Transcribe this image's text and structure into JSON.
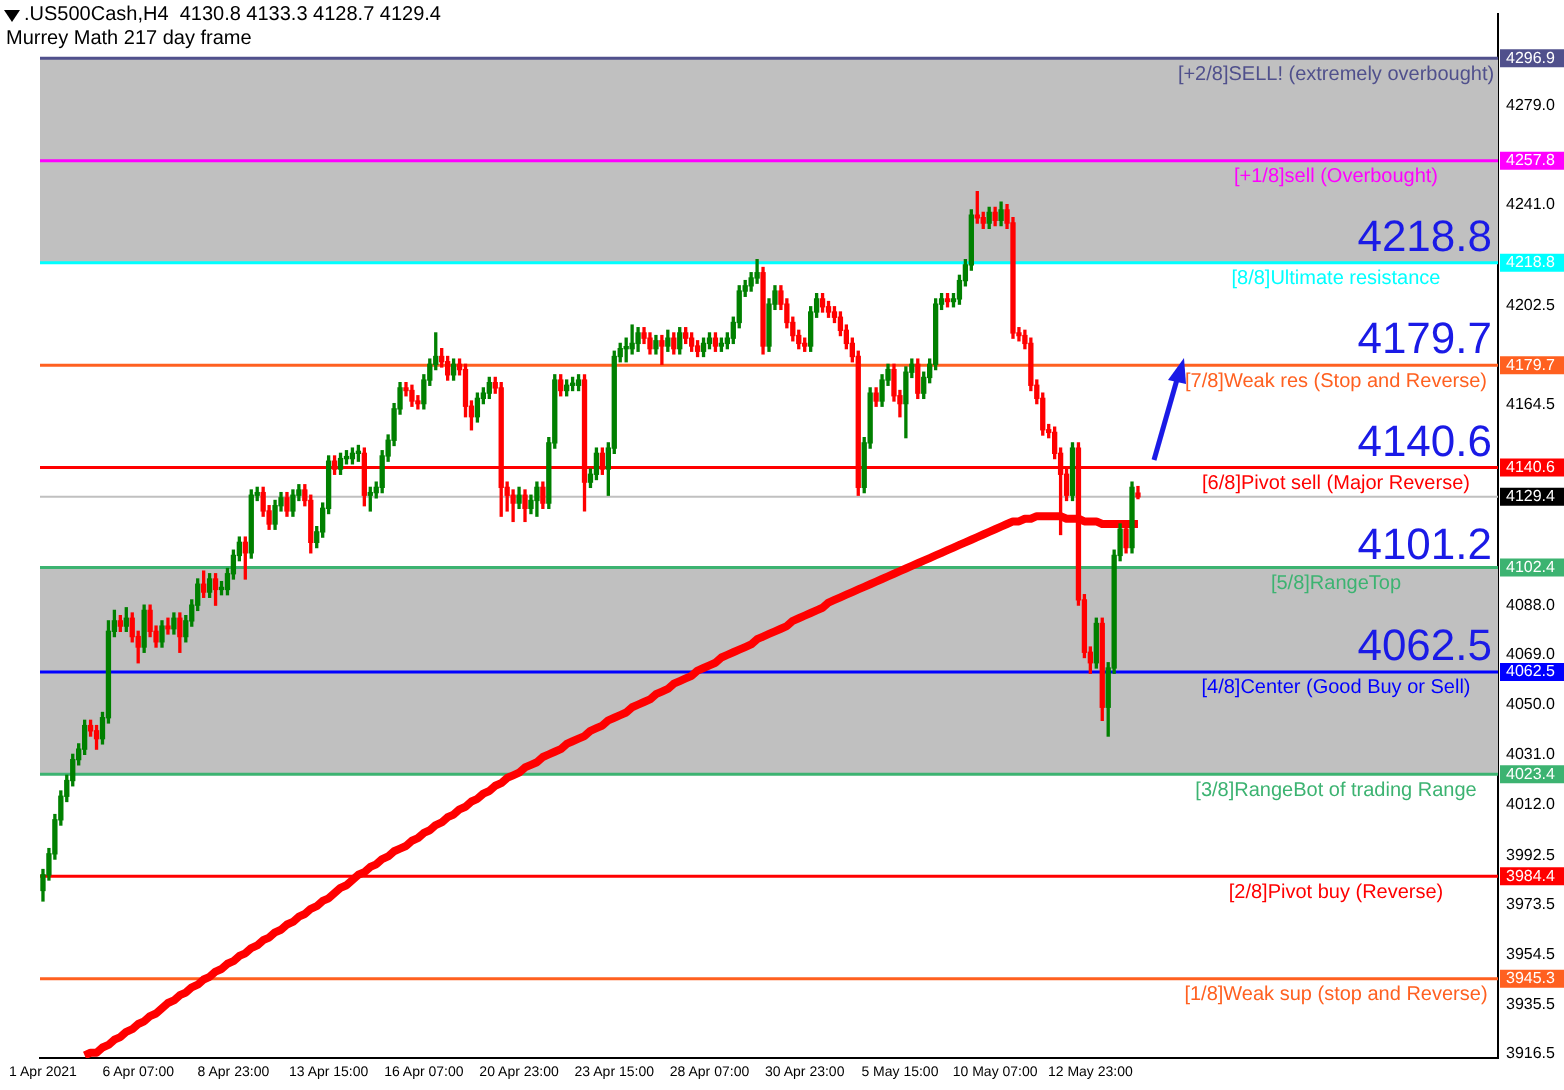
{
  "chart_data": {
    "type": "candlestick",
    "title": ".US500Cash,H4  4130.8 4133.3 4128.7 4129.4",
    "subtitle": "Murrey Math 217 day frame",
    "categories": [
      "1 Apr 2021",
      null,
      null,
      null,
      null,
      null,
      null,
      null,
      null,
      null,
      null,
      null,
      null,
      null,
      null,
      null,
      "6 Apr 07:00",
      null,
      null,
      null,
      null,
      null,
      null,
      null,
      null,
      null,
      null,
      null,
      null,
      null,
      null,
      null,
      "8 Apr 23:00",
      null,
      null,
      null,
      null,
      null,
      null,
      null,
      null,
      null,
      null,
      null,
      null,
      null,
      null,
      null,
      "13 Apr 15:00",
      null,
      null,
      null,
      null,
      null,
      null,
      null,
      null,
      null,
      null,
      null,
      null,
      null,
      null,
      null,
      "16 Apr 07:00",
      null,
      null,
      null,
      null,
      null,
      null,
      null,
      null,
      null,
      null,
      null,
      null,
      null,
      null,
      null,
      "20 Apr 23:00",
      null,
      null,
      null,
      null,
      null,
      null,
      null,
      null,
      null,
      null,
      null,
      null,
      null,
      null,
      null,
      "23 Apr 15:00",
      null,
      null,
      null,
      null,
      null,
      null,
      null,
      null,
      null,
      null,
      null,
      null,
      null,
      null,
      null,
      "28 Apr 07:00",
      null,
      null,
      null,
      null,
      null,
      null,
      null,
      null,
      null,
      null,
      null,
      null,
      null,
      null,
      null,
      "30 Apr 23:00",
      null,
      null,
      null,
      null,
      null,
      null,
      null,
      null,
      null,
      null,
      null,
      null,
      null,
      null,
      null,
      "5 May 15:00",
      null,
      null,
      null,
      null,
      null,
      null,
      null,
      null,
      null,
      null,
      null,
      null,
      null,
      null,
      null,
      "10 May 07:00",
      null,
      null,
      null,
      null,
      null,
      null,
      null,
      null,
      null,
      null,
      null,
      null,
      null,
      null,
      null,
      "12 May 23:00",
      null,
      null,
      null,
      null,
      null,
      null,
      null,
      null,
      null,
      null,
      null,
      null,
      null,
      null,
      null,
      null,
      null,
      null,
      null,
      null,
      null,
      null,
      null,
      null,
      null,
      null,
      null,
      null,
      null,
      null,
      null,
      null,
      null,
      null,
      null,
      null,
      null,
      null,
      null,
      null,
      null,
      null,
      null,
      null,
      null,
      null,
      null,
      null,
      null,
      null,
      null,
      null,
      null,
      null,
      null,
      null,
      null,
      null,
      null,
      null,
      null,
      null,
      null,
      null,
      null,
      null,
      null,
      null
    ],
    "ohlc": [
      [
        3979,
        3987,
        3975,
        3985
      ],
      [
        3985,
        3995,
        3983,
        3993
      ],
      [
        3993,
        4008,
        3991,
        4006
      ],
      [
        4006,
        4017,
        4004,
        4015
      ],
      [
        4015,
        4023,
        4013,
        4021
      ],
      [
        4021,
        4031,
        4019,
        4029
      ],
      [
        4029,
        4035,
        4027,
        4033
      ],
      [
        4033,
        4044,
        4031,
        4042
      ],
      [
        4042,
        4044,
        4038,
        4040
      ],
      [
        4040,
        4042,
        4033,
        4037
      ],
      [
        4037,
        4047,
        4035,
        4045
      ],
      [
        4045,
        4082,
        4043,
        4078
      ],
      [
        4078,
        4086,
        4076,
        4082
      ],
      [
        4082,
        4084,
        4078,
        4080
      ],
      [
        4080,
        4087,
        4078,
        4083
      ],
      [
        4083,
        4085,
        4074,
        4076
      ],
      [
        4076,
        4078,
        4066,
        4072
      ],
      [
        4072,
        4088,
        4070,
        4086
      ],
      [
        4086,
        4088,
        4076,
        4078
      ],
      [
        4078,
        4080,
        4072,
        4074
      ],
      [
        4074,
        4082,
        4072,
        4080
      ],
      [
        4080,
        4083,
        4077,
        4079
      ],
      [
        4079,
        4085,
        4077,
        4083
      ],
      [
        4083,
        4085,
        4070,
        4076
      ],
      [
        4076,
        4084,
        4074,
        4082
      ],
      [
        4082,
        4090,
        4080,
        4088
      ],
      [
        4088,
        4098,
        4086,
        4096
      ],
      [
        4096,
        4101,
        4091,
        4093
      ],
      [
        4093,
        4100,
        4091,
        4098
      ],
      [
        4098,
        4100,
        4088,
        4094
      ],
      [
        4094,
        4097,
        4092,
        4094
      ],
      [
        4094,
        4102,
        4092,
        4100
      ],
      [
        4100,
        4109,
        4098,
        4107
      ],
      [
        4107,
        4114,
        4105,
        4112
      ],
      [
        4112,
        4114,
        4098,
        4108
      ],
      [
        4108,
        4132,
        4106,
        4130
      ],
      [
        4130,
        4133,
        4128,
        4131
      ],
      [
        4131,
        4133,
        4122,
        4124
      ],
      [
        4124,
        4126,
        4117,
        4119
      ],
      [
        4119,
        4128,
        4117,
        4126
      ],
      [
        4126,
        4131,
        4124,
        4129
      ],
      [
        4129,
        4131,
        4122,
        4124
      ],
      [
        4124,
        4132,
        4122,
        4130
      ],
      [
        4130,
        4134,
        4128,
        4132
      ],
      [
        4132,
        4134,
        4126,
        4128
      ],
      [
        4128,
        4130,
        4108,
        4112
      ],
      [
        4112,
        4118,
        4110,
        4116
      ],
      [
        4116,
        4127,
        4114,
        4125
      ],
      [
        4125,
        4145,
        4123,
        4143
      ],
      [
        4143,
        4145,
        4138,
        4140
      ],
      [
        4140,
        4146,
        4138,
        4144
      ],
      [
        4144,
        4147,
        4142,
        4144
      ],
      [
        4144,
        4148,
        4142,
        4146
      ],
      [
        4146,
        4149,
        4143,
        4146
      ],
      [
        4146,
        4148,
        4126,
        4130
      ],
      [
        4130,
        4133,
        4124,
        4131
      ],
      [
        4131,
        4135,
        4129,
        4133
      ],
      [
        4133,
        4147,
        4131,
        4145
      ],
      [
        4145,
        4153,
        4143,
        4151
      ],
      [
        4151,
        4165,
        4149,
        4163
      ],
      [
        4163,
        4173,
        4161,
        4171
      ],
      [
        4171,
        4173,
        4168,
        4170
      ],
      [
        4170,
        4172,
        4164,
        4166
      ],
      [
        4166,
        4168,
        4163,
        4165
      ],
      [
        4165,
        4176,
        4163,
        4174
      ],
      [
        4174,
        4182,
        4172,
        4180
      ],
      [
        4180,
        4192,
        4178,
        4183
      ],
      [
        4183,
        4186,
        4179,
        4181
      ],
      [
        4181,
        4183,
        4174,
        4176
      ],
      [
        4176,
        4182,
        4174,
        4180
      ],
      [
        4180,
        4182,
        4176,
        4178
      ],
      [
        4178,
        4180,
        4160,
        4164
      ],
      [
        4164,
        4166,
        4155,
        4160
      ],
      [
        4160,
        4169,
        4158,
        4167
      ],
      [
        4167,
        4171,
        4165,
        4169
      ],
      [
        4169,
        4175,
        4167,
        4173
      ],
      [
        4173,
        4175,
        4169,
        4171
      ],
      [
        4171,
        4173,
        4122,
        4133
      ],
      [
        4133,
        4135,
        4124,
        4130
      ],
      [
        4130,
        4132,
        4120,
        4127
      ],
      [
        4127,
        4133,
        4125,
        4130
      ],
      [
        4130,
        4132,
        4120,
        4125
      ],
      [
        4125,
        4130,
        4123,
        4128
      ],
      [
        4128,
        4135,
        4122,
        4133
      ],
      [
        4133,
        4135,
        4125,
        4127
      ],
      [
        4127,
        4152,
        4125,
        4150
      ],
      [
        4150,
        4176,
        4148,
        4174
      ],
      [
        4174,
        4176,
        4168,
        4170
      ],
      [
        4170,
        4174,
        4168,
        4172
      ],
      [
        4172,
        4175,
        4170,
        4172
      ],
      [
        4172,
        4176,
        4170,
        4174
      ],
      [
        4174,
        4176,
        4124,
        4135
      ],
      [
        4135,
        4140,
        4133,
        4138
      ],
      [
        4138,
        4148,
        4136,
        4146
      ],
      [
        4146,
        4148,
        4138,
        4140
      ],
      [
        4140,
        4150,
        4130,
        4148
      ],
      [
        4148,
        4185,
        4146,
        4183
      ],
      [
        4183,
        4188,
        4181,
        4186
      ],
      [
        4186,
        4190,
        4181,
        4186
      ],
      [
        4186,
        4195,
        4184,
        4188
      ],
      [
        4188,
        4194,
        4185,
        4192
      ],
      [
        4192,
        4194,
        4188,
        4190
      ],
      [
        4190,
        4192,
        4184,
        4186
      ],
      [
        4186,
        4191,
        4184,
        4189
      ],
      [
        4189,
        4191,
        4180,
        4187
      ],
      [
        4187,
        4193,
        4185,
        4190
      ],
      [
        4190,
        4192,
        4184,
        4186
      ],
      [
        4186,
        4194,
        4184,
        4192
      ],
      [
        4192,
        4194,
        4188,
        4190
      ],
      [
        4190,
        4192,
        4185,
        4187
      ],
      [
        4187,
        4189,
        4183,
        4185
      ],
      [
        4185,
        4190,
        4183,
        4188
      ],
      [
        4188,
        4192,
        4186,
        4190
      ],
      [
        4190,
        4192,
        4185,
        4187
      ],
      [
        4187,
        4190,
        4185,
        4188
      ],
      [
        4188,
        4192,
        4186,
        4190
      ],
      [
        4190,
        4198,
        4188,
        4196
      ],
      [
        4196,
        4210,
        4194,
        4208
      ],
      [
        4208,
        4212,
        4206,
        4210
      ],
      [
        4210,
        4215,
        4208,
        4213
      ],
      [
        4213,
        4220,
        4211,
        4215
      ],
      [
        4215,
        4217,
        4184,
        4187
      ],
      [
        4187,
        4205,
        4185,
        4203
      ],
      [
        4203,
        4210,
        4201,
        4208
      ],
      [
        4208,
        4210,
        4201,
        4203
      ],
      [
        4203,
        4205,
        4194,
        4196
      ],
      [
        4196,
        4198,
        4189,
        4191
      ],
      [
        4191,
        4193,
        4186,
        4188
      ],
      [
        4188,
        4190,
        4185,
        4187
      ],
      [
        4187,
        4202,
        4185,
        4200
      ],
      [
        4200,
        4207,
        4198,
        4205
      ],
      [
        4205,
        4207,
        4200,
        4202
      ],
      [
        4202,
        4204,
        4198,
        4200
      ],
      [
        4200,
        4202,
        4196,
        4198
      ],
      [
        4198,
        4200,
        4191,
        4193
      ],
      [
        4193,
        4195,
        4186,
        4188
      ],
      [
        4188,
        4190,
        4181,
        4183
      ],
      [
        4183,
        4185,
        4130,
        4133
      ],
      [
        4133,
        4152,
        4131,
        4150
      ],
      [
        4150,
        4171,
        4148,
        4169
      ],
      [
        4169,
        4171,
        4164,
        4166
      ],
      [
        4166,
        4176,
        4164,
        4174
      ],
      [
        4174,
        4180,
        4172,
        4178
      ],
      [
        4178,
        4180,
        4166,
        4168
      ],
      [
        4168,
        4170,
        4160,
        4165
      ],
      [
        4165,
        4179,
        4152,
        4177
      ],
      [
        4177,
        4182,
        4175,
        4180
      ],
      [
        4180,
        4182,
        4167,
        4169
      ],
      [
        4169,
        4177,
        4167,
        4175
      ],
      [
        4175,
        4182,
        4173,
        4180
      ],
      [
        4180,
        4205,
        4178,
        4203
      ],
      [
        4203,
        4207,
        4201,
        4205
      ],
      [
        4205,
        4207,
        4202,
        4204
      ],
      [
        4204,
        4207,
        4202,
        4205
      ],
      [
        4205,
        4214,
        4203,
        4212
      ],
      [
        4212,
        4220,
        4210,
        4218
      ],
      [
        4218,
        4239,
        4216,
        4237
      ],
      [
        4237,
        4246,
        4234,
        4236
      ],
      [
        4236,
        4238,
        4232,
        4234
      ],
      [
        4234,
        4240,
        4232,
        4238
      ],
      [
        4238,
        4240,
        4233,
        4235
      ],
      [
        4235,
        4242,
        4233,
        4239
      ],
      [
        4239,
        4241,
        4232,
        4234
      ],
      [
        4234,
        4236,
        4190,
        4192
      ],
      [
        4192,
        4194,
        4189,
        4191
      ],
      [
        4191,
        4193,
        4186,
        4188
      ],
      [
        4188,
        4190,
        4170,
        4172
      ],
      [
        4172,
        4174,
        4165,
        4167
      ],
      [
        4167,
        4169,
        4153,
        4155
      ],
      [
        4155,
        4157,
        4152,
        4154
      ],
      [
        4154,
        4156,
        4144,
        4146
      ],
      [
        4146,
        4148,
        4115,
        4138
      ],
      [
        4138,
        4140,
        4128,
        4130
      ],
      [
        4130,
        4150,
        4128,
        4148
      ],
      [
        4148,
        4150,
        4088,
        4090
      ],
      [
        4090,
        4092,
        4068,
        4070
      ],
      [
        4070,
        4072,
        4062,
        4066
      ],
      [
        4066,
        4083,
        4064,
        4081
      ],
      [
        4081,
        4083,
        4044,
        4049
      ],
      [
        4049,
        4066,
        4038,
        4064
      ],
      [
        4064,
        4109,
        4062,
        4107
      ],
      [
        4107,
        4119,
        4105,
        4117
      ],
      [
        4117,
        4119,
        4108,
        4110
      ],
      [
        4110,
        4135,
        4108,
        4133
      ],
      [
        4130.8,
        4133.3,
        4128.7,
        4129.4
      ],
      null,
      null,
      null,
      null,
      null,
      null,
      null,
      null,
      null,
      null,
      null,
      null,
      null,
      null,
      null,
      null,
      null,
      null,
      null,
      null,
      null,
      null,
      null,
      null,
      null,
      null,
      null,
      null,
      null,
      null,
      null,
      null,
      null,
      null,
      null,
      null,
      null,
      null,
      null,
      null,
      null,
      null,
      null,
      null,
      null,
      null,
      null,
      null,
      null,
      null,
      null,
      null,
      null,
      null,
      null,
      null,
      null,
      null,
      null,
      null
    ],
    "series": [
      {
        "type": "line",
        "color": "#ff0000",
        "values": [
          null,
          null,
          null,
          null,
          null,
          null,
          null,
          3916,
          3917,
          3917,
          3919,
          3920,
          3922,
          3923,
          3925,
          3926,
          3928,
          3929,
          3931,
          3932,
          3934,
          3936,
          3937,
          3939,
          3940,
          3942,
          3943,
          3945,
          3946,
          3948,
          3949,
          3951,
          3952,
          3954,
          3955,
          3957,
          3958,
          3960,
          3961,
          3963,
          3964,
          3966,
          3967,
          3969,
          3970,
          3972,
          3973,
          3975,
          3976,
          3978,
          3980,
          3981,
          3983,
          3985,
          3986,
          3988,
          3989,
          3991,
          3992,
          3994,
          3995,
          3996,
          3998,
          3999,
          4001,
          4002,
          4004,
          4005,
          4007,
          4008,
          4010,
          4011,
          4013,
          4014,
          4016,
          4017,
          4019,
          4020,
          4022,
          4023,
          4024,
          4026,
          4027,
          4028,
          4030,
          4031,
          4032,
          4033,
          4035,
          4036,
          4037,
          4038,
          4040,
          4041,
          4042,
          4044,
          4045,
          4046,
          4047,
          4049,
          4050,
          4051,
          4052,
          4054,
          4055,
          4056,
          4058,
          4059,
          4060,
          4061,
          4063,
          4064,
          4065,
          4066,
          4068,
          4069,
          4070,
          4071,
          4072,
          4073,
          4075,
          4076,
          4077,
          4078,
          4079,
          4080,
          4082,
          4083,
          4084,
          4085,
          4086,
          4087,
          4089,
          4090,
          4091,
          4092,
          4093,
          4094,
          4095,
          4096,
          4097,
          4098,
          4099,
          4100,
          4101,
          4102,
          4103,
          4104,
          4105,
          4106,
          4107,
          4108,
          4109,
          4110,
          4111,
          4112,
          4113,
          4114,
          4115,
          4116,
          4117,
          4118,
          4119,
          4120,
          4120,
          4121,
          4121,
          4122,
          4122,
          4122,
          4122,
          4122,
          4121,
          4121,
          4121,
          4120,
          4120,
          4120,
          4119,
          4119,
          4119,
          4119,
          4119,
          4119,
          4119,
          null,
          null,
          null,
          null,
          null,
          null,
          null,
          null,
          null,
          null,
          null,
          null,
          null,
          null,
          null,
          null,
          null,
          null,
          null,
          null,
          null,
          null,
          null,
          null,
          null,
          null,
          null,
          null,
          null,
          null,
          null,
          null,
          null,
          null,
          null,
          null,
          null,
          null,
          null,
          null,
          null,
          null,
          null,
          null,
          null,
          null,
          null,
          null,
          null,
          null,
          null,
          null,
          null,
          null,
          null,
          null,
          null,
          null,
          null,
          null
        ]
      }
    ],
    "ylim": [
      3915,
      4314
    ],
    "yticks": [
      3916.5,
      3935.5,
      3945.3,
      3954.5,
      3973.5,
      3984.4,
      3992.5,
      {
        "value": 4012,
        "label": "4012.0"
      },
      4023.4,
      {
        "value": 4031,
        "label": "4031.0"
      },
      {
        "value": 4050,
        "label": "4050.0"
      },
      4062.5,
      {
        "value": 4069,
        "label": "4069.0"
      },
      {
        "value": 4088,
        "label": "4088.0"
      },
      4102.4,
      4129.4,
      4140.6,
      4164.5,
      4179.7,
      4202.5,
      4218.8,
      {
        "value": 4241,
        "label": "4241.0"
      },
      4257.8,
      {
        "value": 4279,
        "label": "4279.0"
      },
      4296.9
    ],
    "bands": [
      {
        "axis": "y",
        "from": 4218.8,
        "to": 4296.9,
        "color": "#c0c0c0"
      },
      {
        "axis": "y",
        "from": 4023.4,
        "to": 4102.4,
        "color": "#c0c0c0"
      }
    ],
    "ref_lines": [
      {
        "axis": "y",
        "value": 4296.9,
        "label": "[+2/8]SELL! (extremely overbought)",
        "color": "#50508c"
      },
      {
        "axis": "y",
        "value": 4257.8,
        "label": "[+1/8]sell (Overbought)",
        "color": "#ff00ff"
      },
      {
        "axis": "y",
        "value": 4218.8,
        "label": "[8/8]Ultimate resistance",
        "color": "#00ffff"
      },
      {
        "axis": "y",
        "value": 4179.7,
        "label": "[7/8]Weak res (Stop and Reverse)",
        "color": "#ff6020"
      },
      {
        "axis": "y",
        "value": 4140.6,
        "label": "[6/8]Pivot sell (Major Reverse)",
        "color": "#ff0000"
      },
      {
        "axis": "y",
        "value": 4129.4,
        "color": "#c0c0c0"
      },
      {
        "axis": "y",
        "value": 4102.4,
        "label": "[5/8]RangeTop",
        "color": "#3cb371"
      },
      {
        "axis": "y",
        "value": 4062.5,
        "label": "[4/8]Center (Good Buy or Sell)",
        "color": "#0000ff"
      },
      {
        "axis": "y",
        "value": 4023.4,
        "label": "[3/8]RangeBot of trading Range",
        "color": "#3cb371"
      },
      {
        "axis": "y",
        "value": 3984.4,
        "label": "[2/8]Pivot buy (Reverse)",
        "color": "#ff0000"
      },
      {
        "axis": "y",
        "value": 3945.3,
        "label": "[1/8]Weak sup (stop and Reverse)",
        "color": "#ff6020"
      }
    ],
    "annotations": [
      {
        "text": "4218.8",
        "y": 4218.8
      },
      {
        "text": "4179.7",
        "y": 4179.7
      },
      {
        "text": "4140.6",
        "y": 4140.6
      },
      {
        "text": "4101.2",
        "y": 4101.2
      },
      {
        "text": "4062.5",
        "y": 4062.5
      }
    ]
  }
}
